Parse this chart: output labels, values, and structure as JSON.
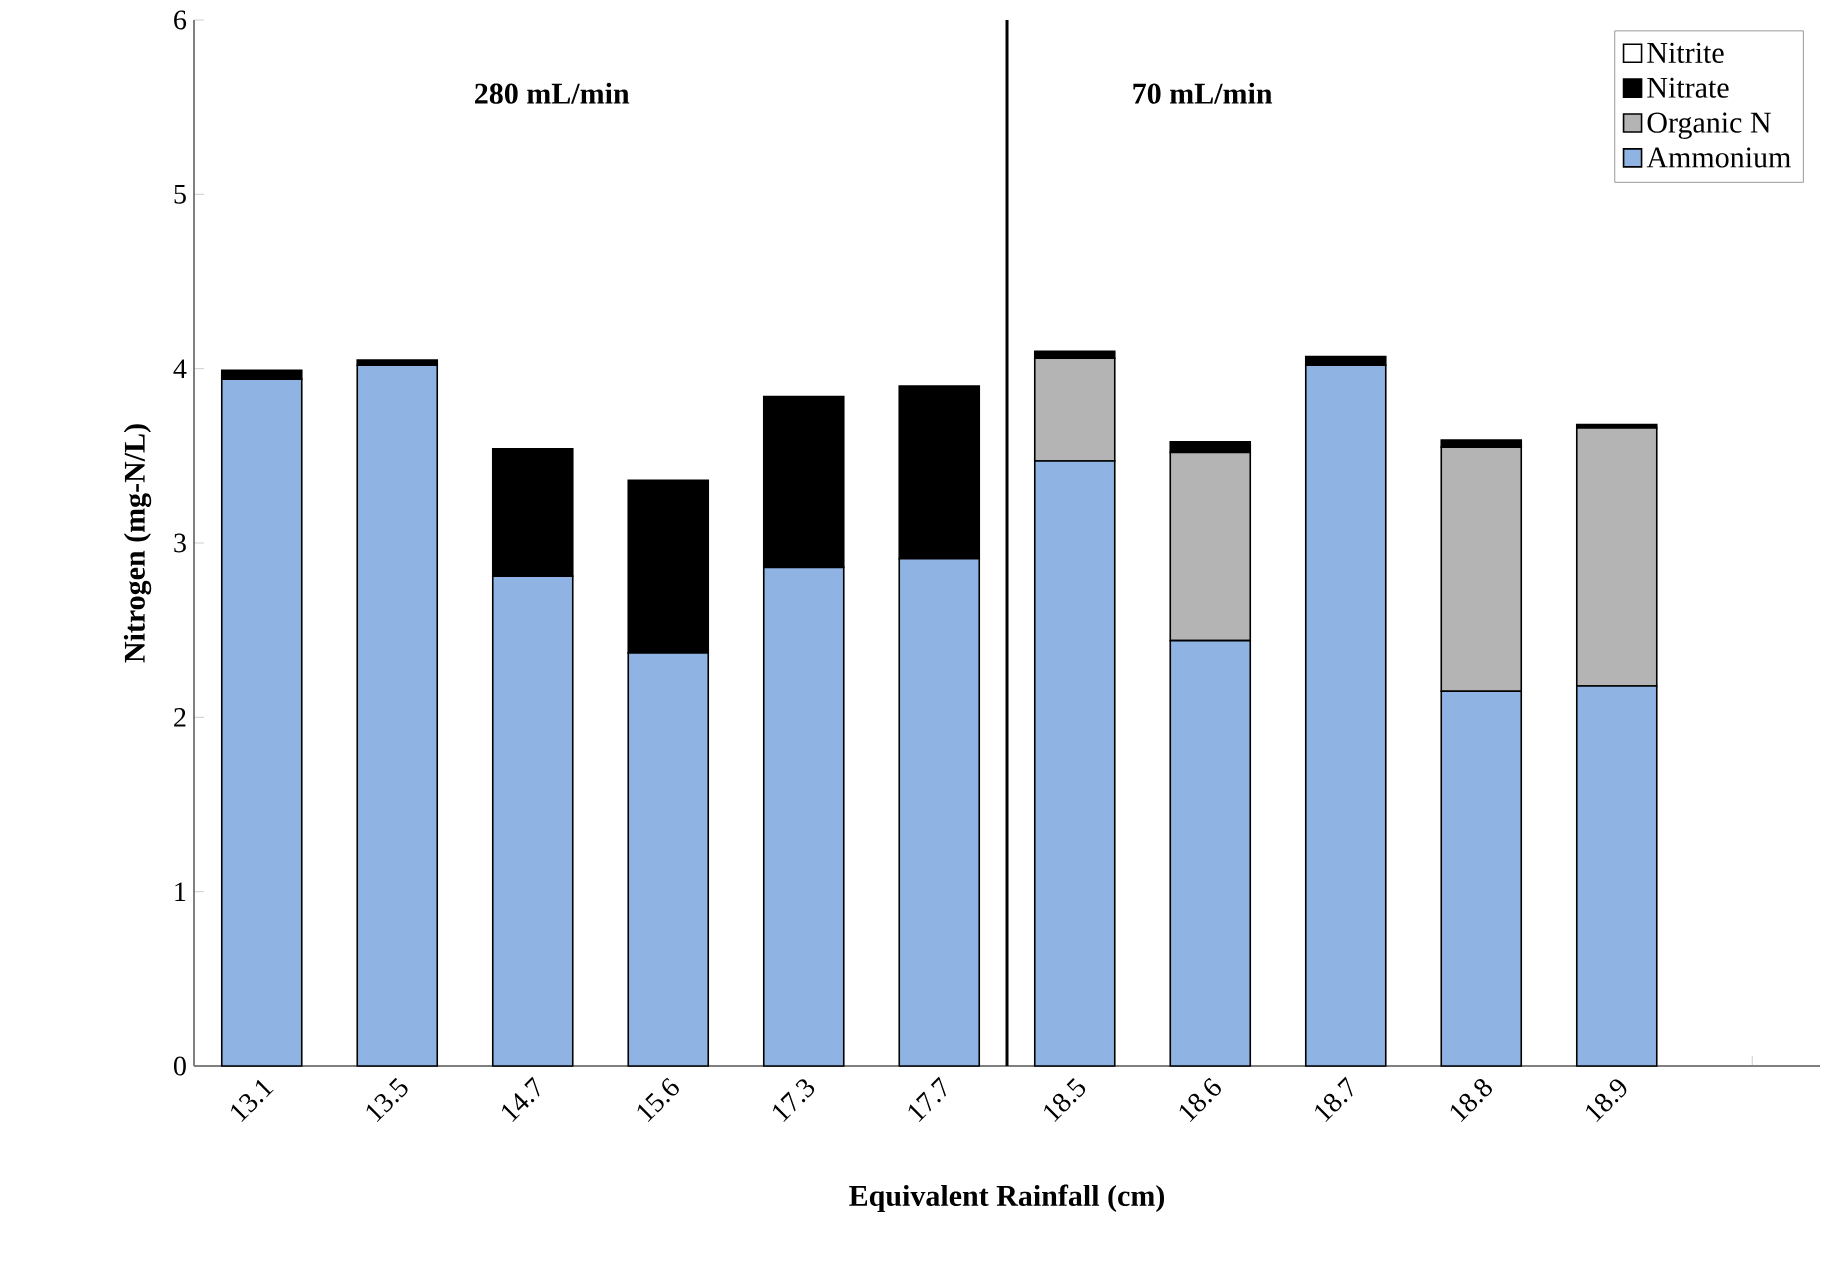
{
  "chart_data": {
    "type": "bar",
    "stacked": true,
    "xlabel": "Equivalent Rainfall (cm)",
    "ylabel": "Nitrogen (mg-N/L)",
    "categories": [
      "13.1",
      "13.5",
      "14.7",
      "15.6",
      "17.3",
      "17.7",
      "18.5",
      "18.6",
      "18.7",
      "18.8",
      "18.9",
      null
    ],
    "series": [
      {
        "name": "Ammonium",
        "color": "#8fb3e2",
        "values": [
          3.94,
          4.02,
          2.81,
          2.37,
          2.86,
          2.91,
          3.47,
          2.44,
          4.02,
          2.15,
          2.18,
          null
        ]
      },
      {
        "name": "Organic N",
        "color": "#b4b4b4",
        "values": [
          0,
          0,
          0,
          0,
          0,
          0,
          0.59,
          1.08,
          0,
          1.4,
          1.48,
          null
        ]
      },
      {
        "name": "Nitrate",
        "color": "#000000",
        "values": [
          0.05,
          0.03,
          0.73,
          0.99,
          0.98,
          0.99,
          0.04,
          0.06,
          0.05,
          0.04,
          0.02,
          null
        ]
      },
      {
        "name": "Nitrite",
        "color": "#ffffff",
        "values": [
          0,
          0,
          0,
          0,
          0,
          0,
          0,
          0,
          0,
          0,
          0,
          null
        ]
      }
    ],
    "ylim": [
      0,
      6
    ],
    "yticks": [
      0,
      1,
      2,
      3,
      4,
      5,
      6
    ],
    "annotations": [
      "280 mL/min",
      "70 mL/min"
    ],
    "legend": "top right"
  }
}
